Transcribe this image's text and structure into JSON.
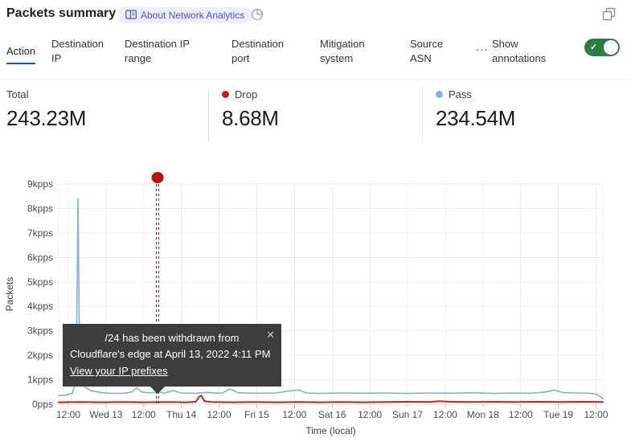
{
  "header": {
    "title": "Packets summary",
    "badge_label": "About Network Analytics"
  },
  "tabs": {
    "items": [
      {
        "label": "Action",
        "active": true
      },
      {
        "label": "Destination IP",
        "active": false
      },
      {
        "label": "Destination IP range",
        "active": false
      },
      {
        "label": "Destination port",
        "active": false
      },
      {
        "label": "Mitigation system",
        "active": false
      },
      {
        "label": "Source ASN",
        "active": false
      }
    ],
    "overflow_label": "...",
    "annotations_toggle": {
      "label": "Show annotations",
      "state": "on",
      "check": "✓"
    }
  },
  "stats": [
    {
      "label": "Total",
      "value": "243.23M",
      "dot_color": ""
    },
    {
      "label": "Drop",
      "value": "8.68M",
      "dot_color": "#c11d1d"
    },
    {
      "label": "Pass",
      "value": "234.54M",
      "dot_color": "#7fb1ed"
    }
  ],
  "tooltip": {
    "line1": "/24 has been withdrawn from",
    "line2": "Cloudflare's edge at April 13, 2022 4:11 PM",
    "link": "View your IP prefixes",
    "close": "✕"
  },
  "chart_data": {
    "type": "line",
    "title": "Packets summary",
    "xlabel": "Time (local)",
    "ylabel": "Packets",
    "unit": "kpps",
    "ylim": [
      0,
      9
    ],
    "grid": true,
    "x_tick_labels": [
      "12:00",
      "Wed 13",
      "12:00",
      "Thu 14",
      "12:00",
      "Fri 15",
      "12:00",
      "Sat 16",
      "12:00",
      "Sun 17",
      "12:00",
      "Mon 18",
      "12:00",
      "Tue 19",
      "12:00"
    ],
    "y_ticks": [
      {
        "v": 0,
        "label": "0pps"
      },
      {
        "v": 1,
        "label": "1kpps"
      },
      {
        "v": 2,
        "label": "2kpps"
      },
      {
        "v": 3,
        "label": "3kpps"
      },
      {
        "v": 4,
        "label": "4kpps"
      },
      {
        "v": 5,
        "label": "5kpps"
      },
      {
        "v": 6,
        "label": "6kpps"
      },
      {
        "v": 7,
        "label": "7kpps"
      },
      {
        "v": 8,
        "label": "8kpps"
      },
      {
        "v": 9,
        "label": "9kpps"
      }
    ],
    "series": [
      {
        "name": "Pass",
        "color": "#7fb0ea",
        "width": 1.6,
        "points": [
          [
            0,
            0.35
          ],
          [
            0.015,
            0.38
          ],
          [
            0.025,
            0.45
          ],
          [
            0.03,
            0.8
          ],
          [
            0.033,
            2.5
          ],
          [
            0.0355,
            8.4
          ],
          [
            0.038,
            3.0
          ],
          [
            0.041,
            1.0
          ],
          [
            0.048,
            0.7
          ],
          [
            0.06,
            0.55
          ],
          [
            0.08,
            0.47
          ],
          [
            0.1,
            0.44
          ],
          [
            0.12,
            0.45
          ],
          [
            0.135,
            0.5
          ],
          [
            0.143,
            0.68
          ],
          [
            0.152,
            0.5
          ],
          [
            0.17,
            0.46
          ],
          [
            0.182,
            0.52
          ],
          [
            0.195,
            0.45
          ],
          [
            0.21,
            0.56
          ],
          [
            0.225,
            0.46
          ],
          [
            0.25,
            0.45
          ],
          [
            0.27,
            0.48
          ],
          [
            0.3,
            0.45
          ],
          [
            0.315,
            0.62
          ],
          [
            0.33,
            0.47
          ],
          [
            0.36,
            0.45
          ],
          [
            0.4,
            0.46
          ],
          [
            0.425,
            0.55
          ],
          [
            0.44,
            0.58
          ],
          [
            0.455,
            0.46
          ],
          [
            0.48,
            0.44
          ],
          [
            0.52,
            0.46
          ],
          [
            0.56,
            0.45
          ],
          [
            0.6,
            0.46
          ],
          [
            0.64,
            0.44
          ],
          [
            0.68,
            0.46
          ],
          [
            0.72,
            0.45
          ],
          [
            0.76,
            0.47
          ],
          [
            0.8,
            0.44
          ],
          [
            0.84,
            0.46
          ],
          [
            0.87,
            0.45
          ],
          [
            0.895,
            0.5
          ],
          [
            0.91,
            0.58
          ],
          [
            0.925,
            0.48
          ],
          [
            0.95,
            0.46
          ],
          [
            0.975,
            0.45
          ],
          [
            0.99,
            0.4
          ],
          [
            1.0,
            0.22
          ]
        ]
      },
      {
        "name": "Drop",
        "color": "#b02727",
        "width": 2,
        "points": [
          [
            0,
            0.08
          ],
          [
            0.04,
            0.09
          ],
          [
            0.08,
            0.08
          ],
          [
            0.12,
            0.09
          ],
          [
            0.16,
            0.08
          ],
          [
            0.2,
            0.09
          ],
          [
            0.235,
            0.08
          ],
          [
            0.252,
            0.1
          ],
          [
            0.258,
            0.3
          ],
          [
            0.262,
            0.35
          ],
          [
            0.268,
            0.12
          ],
          [
            0.28,
            0.09
          ],
          [
            0.32,
            0.08
          ],
          [
            0.36,
            0.09
          ],
          [
            0.4,
            0.08
          ],
          [
            0.44,
            0.09
          ],
          [
            0.48,
            0.08
          ],
          [
            0.52,
            0.09
          ],
          [
            0.56,
            0.08
          ],
          [
            0.6,
            0.09
          ],
          [
            0.64,
            0.1
          ],
          [
            0.68,
            0.09
          ],
          [
            0.7,
            0.12
          ],
          [
            0.72,
            0.1
          ],
          [
            0.76,
            0.09
          ],
          [
            0.8,
            0.1
          ],
          [
            0.84,
            0.09
          ],
          [
            0.88,
            0.1
          ],
          [
            0.92,
            0.09
          ],
          [
            0.96,
            0.1
          ],
          [
            1.0,
            0.09
          ]
        ]
      }
    ],
    "annotation": {
      "x_frac": 0.1817,
      "color": "#b41414",
      "time": "April 13, 2022 4:11 PM",
      "text": "/24 has been withdrawn from Cloudflare's edge at April 13, 2022 4:11 PM"
    },
    "colors": {
      "grid": "#ececec",
      "axis": "#d5d5d5",
      "tick_text": "#4b4b50"
    }
  }
}
